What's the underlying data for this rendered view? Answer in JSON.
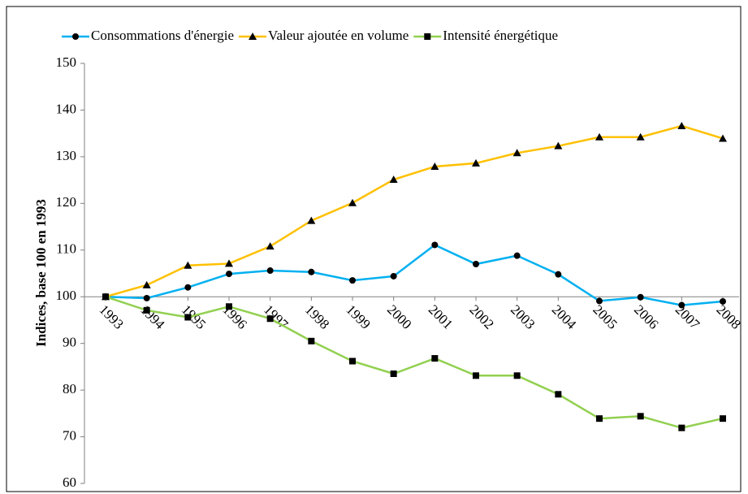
{
  "chart_data": {
    "type": "line",
    "y_axis_label": "Indices, base 100 en 1993",
    "categories": [
      "1993",
      "1994",
      "1995",
      "1996",
      "1997",
      "1998",
      "1999",
      "2000",
      "2001",
      "2002",
      "2003",
      "2004",
      "2005",
      "2006",
      "2007",
      "2008"
    ],
    "series": [
      {
        "name": "Consommations d'énergie",
        "color": "#00b0f0",
        "marker": "circle",
        "values": [
          100,
          99.7,
          102.0,
          104.9,
          105.6,
          105.3,
          103.5,
          104.4,
          111.1,
          107.0,
          108.8,
          104.8,
          99.1,
          99.9,
          98.2,
          99.0
        ]
      },
      {
        "name": "Valeur ajoutée en volume",
        "color": "#ffc000",
        "marker": "triangle",
        "values": [
          100,
          102.5,
          106.7,
          107.1,
          110.8,
          116.3,
          120.1,
          125.1,
          127.9,
          128.6,
          130.8,
          132.3,
          134.2,
          134.2,
          136.6,
          133.9
        ]
      },
      {
        "name": "Intensité énergétique",
        "color": "#92d050",
        "marker": "square",
        "values": [
          100,
          97.1,
          95.6,
          97.9,
          95.3,
          90.5,
          86.2,
          83.5,
          86.8,
          83.1,
          83.1,
          79.1,
          73.9,
          74.4,
          71.9,
          73.9
        ]
      }
    ],
    "marker_color": "#000000",
    "ylim": [
      60,
      150
    ],
    "yticks": [
      60,
      70,
      80,
      90,
      100,
      110,
      120,
      130,
      140,
      150
    ],
    "x_axis_crosses": 100,
    "legend": "top"
  }
}
